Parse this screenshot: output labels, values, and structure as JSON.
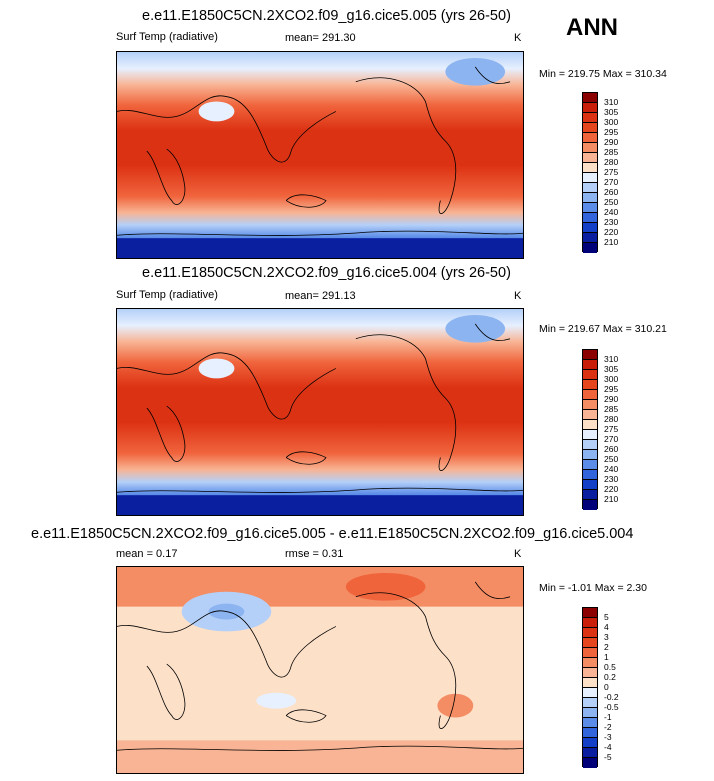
{
  "season": "ANN",
  "panels": [
    {
      "title": "e.e11.E1850C5CN.2XCO2.f09_g16.cice5.005 (yrs 26-50)",
      "left_label": "Surf Temp (radiative)",
      "center_label": "mean= 291.30",
      "right_label": "K",
      "minmax": "Min = 219.75 Max = 310.34",
      "colorbar": {
        "labels": [
          "310",
          "305",
          "300",
          "295",
          "290",
          "285",
          "280",
          "275",
          "270",
          "260",
          "250",
          "240",
          "230",
          "220",
          "210"
        ],
        "colors": [
          "#8b0000",
          "#c81e0a",
          "#dc3214",
          "#e6461e",
          "#f0643c",
          "#f48c64",
          "#f8b494",
          "#fde0c8",
          "#e6f0ff",
          "#b4d0f8",
          "#8cb4f0",
          "#5a8ce8",
          "#3264dc",
          "#1440c8",
          "#0a1ea0",
          "#000078"
        ]
      }
    },
    {
      "title": "e.e11.E1850C5CN.2XCO2.f09_g16.cice5.004 (yrs 26-50)",
      "left_label": "Surf Temp (radiative)",
      "center_label": "mean= 291.13",
      "right_label": "K",
      "minmax": "Min = 219.67 Max = 310.21",
      "colorbar": {
        "labels": [
          "310",
          "305",
          "300",
          "295",
          "290",
          "285",
          "280",
          "275",
          "270",
          "260",
          "250",
          "240",
          "230",
          "220",
          "210"
        ],
        "colors": [
          "#8b0000",
          "#c81e0a",
          "#dc3214",
          "#e6461e",
          "#f0643c",
          "#f48c64",
          "#f8b494",
          "#fde0c8",
          "#e6f0ff",
          "#b4d0f8",
          "#8cb4f0",
          "#5a8ce8",
          "#3264dc",
          "#1440c8",
          "#0a1ea0",
          "#000078"
        ]
      }
    },
    {
      "title": "e.e11.E1850C5CN.2XCO2.f09_g16.cice5.005 - e.e11.E1850C5CN.2XCO2.f09_g16.cice5.004",
      "left_label": "mean =   0.17",
      "center_label": "rmse =   0.31",
      "right_label": "K",
      "minmax": "Min =  -1.01 Max =   2.30",
      "colorbar": {
        "labels": [
          "5",
          "4",
          "3",
          "2",
          "1",
          "0.5",
          "0.2",
          "0",
          "-0.2",
          "-0.5",
          "-1",
          "-2",
          "-3",
          "-4",
          "-5"
        ],
        "colors": [
          "#8b0000",
          "#c81e0a",
          "#dc3214",
          "#e6461e",
          "#f0643c",
          "#f48c64",
          "#f8b494",
          "#fde0c8",
          "#e6f0ff",
          "#b4d0f8",
          "#8cb4f0",
          "#5a8ce8",
          "#3264dc",
          "#1440c8",
          "#0a1ea0",
          "#000078"
        ]
      }
    }
  ]
}
